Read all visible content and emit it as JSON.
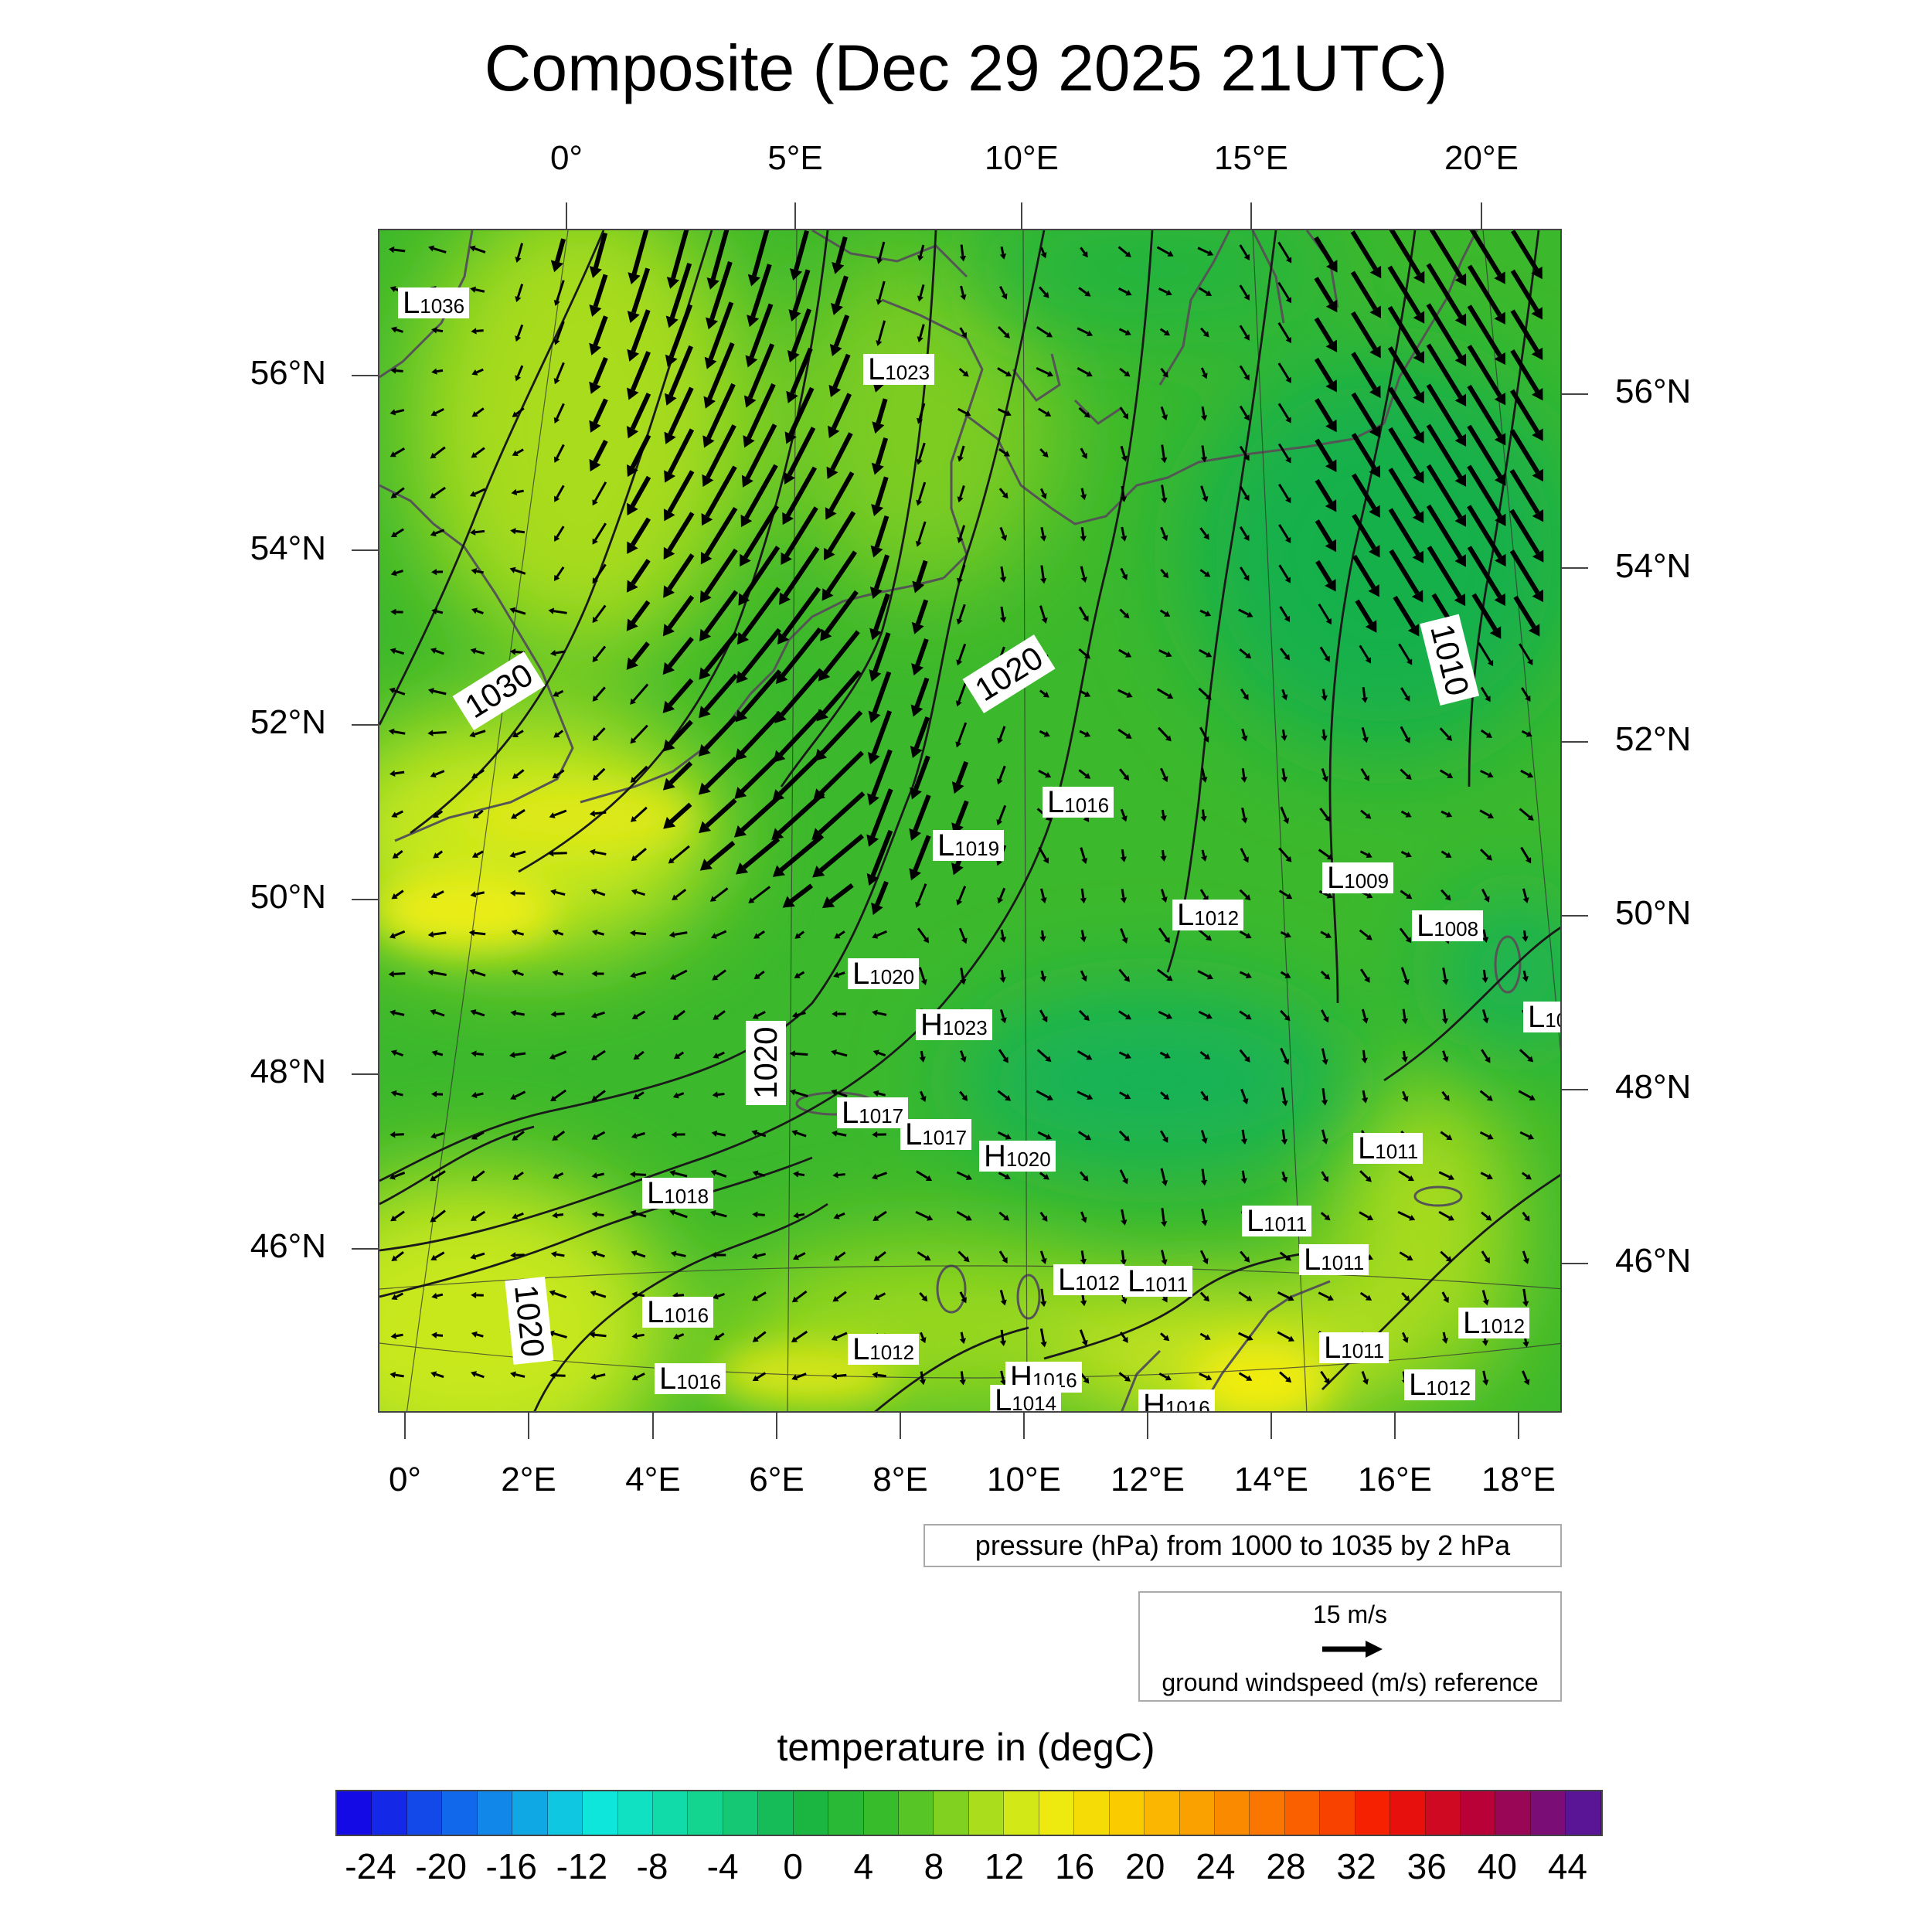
{
  "title": "Composite (Dec 29 2025 21UTC)",
  "top_lon_labels": [
    "0°",
    "5°E",
    "10°E",
    "15°E",
    "20°E"
  ],
  "bottom_lon_labels": [
    "0°",
    "2°E",
    "4°E",
    "6°E",
    "8°E",
    "10°E",
    "12°E",
    "14°E",
    "16°E",
    "18°E"
  ],
  "left_lat_labels": [
    "56°N",
    "54°N",
    "52°N",
    "50°N",
    "48°N",
    "46°N"
  ],
  "right_lat_labels": [
    "56°N",
    "54°N",
    "52°N",
    "50°N",
    "48°N",
    "46°N"
  ],
  "contour_labels": [
    "1030",
    "1020",
    "1020",
    "1020",
    "1010"
  ],
  "pressure_centers": [
    {
      "type": "L",
      "value": "1036"
    },
    {
      "type": "L",
      "value": "1023"
    },
    {
      "type": "L",
      "value": "1016"
    },
    {
      "type": "L",
      "value": "1019"
    },
    {
      "type": "L",
      "value": "1009"
    },
    {
      "type": "L",
      "value": "1012"
    },
    {
      "type": "L",
      "value": "1008"
    },
    {
      "type": "L",
      "value": "10"
    },
    {
      "type": "L",
      "value": "1020"
    },
    {
      "type": "H",
      "value": "1023"
    },
    {
      "type": "L",
      "value": "1017"
    },
    {
      "type": "L",
      "value": "1017"
    },
    {
      "type": "H",
      "value": "1020"
    },
    {
      "type": "L",
      "value": "1011"
    },
    {
      "type": "L",
      "value": "1018"
    },
    {
      "type": "L",
      "value": "1011"
    },
    {
      "type": "L",
      "value": "1011"
    },
    {
      "type": "L",
      "value": "1012"
    },
    {
      "type": "L",
      "value": "1011"
    },
    {
      "type": "L",
      "value": "1016"
    },
    {
      "type": "L",
      "value": "1012"
    },
    {
      "type": "L",
      "value": "1011"
    },
    {
      "type": "L",
      "value": "1012"
    },
    {
      "type": "L",
      "value": "1016"
    },
    {
      "type": "H",
      "value": "1016"
    },
    {
      "type": "L",
      "value": "1014"
    },
    {
      "type": "H",
      "value": "1016"
    },
    {
      "type": "L",
      "value": "1012"
    }
  ],
  "pressure_info": "pressure (hPa) from 1000 to 1035 by 2 hPa",
  "wind_reference": {
    "value_label": "15 m/s",
    "description": "ground windspeed (m/s) reference"
  },
  "colorbar": {
    "title": "temperature in (degC)",
    "tick_labels": [
      "-24",
      "-20",
      "-16",
      "-12",
      "-8",
      "-4",
      "0",
      "4",
      "8",
      "12",
      "16",
      "20",
      "24",
      "28",
      "32",
      "36",
      "40",
      "44"
    ],
    "min": -26,
    "max": 46,
    "step": 2
  },
  "colors": {
    "field_base": "#33b52a",
    "field_warm": "#c8e81a",
    "field_hot": "#f0ec10",
    "field_cold": "#12b45a",
    "vector": "#000000",
    "coastline": "#555555",
    "contour": "#1a1a1a"
  }
}
